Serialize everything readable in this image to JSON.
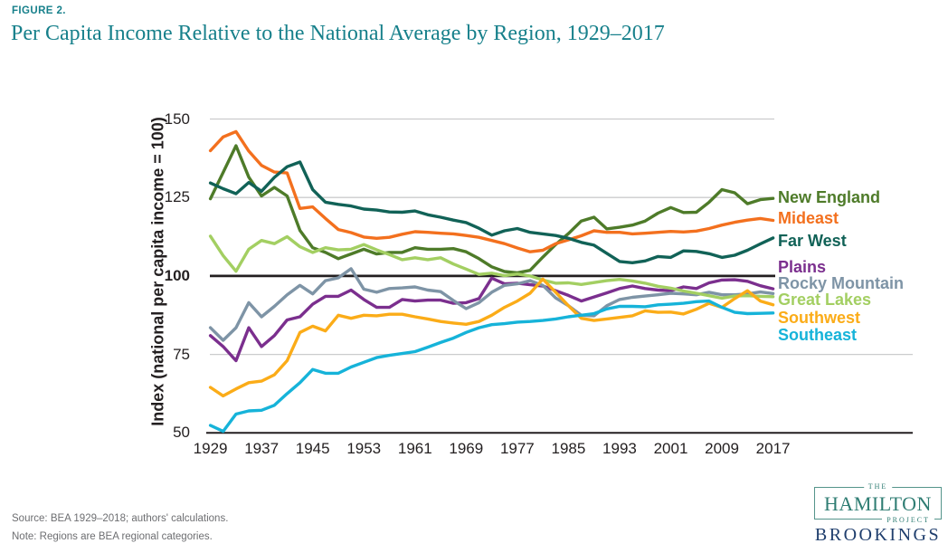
{
  "figure_label": "FIGURE 2.",
  "title": "Per Capita Income Relative to the National Average by Region, 1929–2017",
  "source_line": "Source: BEA 1929–2018; authors' calculations.",
  "note_line": "Note: Regions are BEA regional categories.",
  "logo": {
    "the": "THE",
    "hamilton": "HAMILTON",
    "project": "PROJECT",
    "brookings": "BROOKINGS"
  },
  "colors": {
    "title_teal": "#17808b",
    "axis_black": "#231f20",
    "gridline_gray": "#cbcccd",
    "source_gray": "#6d6e71",
    "logo_teal": "#2f7d73",
    "brookings_navy": "#1f3e6d"
  },
  "chart_data": {
    "type": "line",
    "title": "Per Capita Income Relative to the National Average by Region, 1929–2017",
    "xlabel": "",
    "ylabel": "Index (national per capita income = 100)",
    "xlim": [
      1929,
      2017
    ],
    "ylim": [
      50,
      155
    ],
    "yticks": [
      150,
      125,
      100,
      75,
      50
    ],
    "xticks": [
      1929,
      1937,
      1945,
      1953,
      1961,
      1969,
      1977,
      1985,
      1993,
      2001,
      2009,
      2017
    ],
    "reference_line": 100,
    "grid": "horizontal",
    "legend_position": "right",
    "x": [
      1929,
      1931,
      1933,
      1935,
      1937,
      1939,
      1941,
      1943,
      1945,
      1947,
      1949,
      1951,
      1953,
      1955,
      1957,
      1959,
      1961,
      1963,
      1965,
      1967,
      1969,
      1971,
      1973,
      1975,
      1977,
      1979,
      1981,
      1983,
      1985,
      1987,
      1989,
      1991,
      1993,
      1995,
      1997,
      1999,
      2001,
      2003,
      2005,
      2007,
      2009,
      2011,
      2013,
      2015,
      2017
    ],
    "series": [
      {
        "name": "New England",
        "color": "#4e7b29",
        "values": [
          124.6,
          133,
          141.5,
          131.5,
          125.5,
          128.2,
          125.5,
          114.5,
          109,
          107.5,
          105.5,
          107,
          108.5,
          107,
          107.5,
          107.5,
          109,
          108.5,
          108.5,
          108.7,
          107.7,
          105.5,
          102.9,
          101.4,
          101,
          101.8,
          106,
          110,
          113.5,
          117.5,
          118.7,
          115,
          115.5,
          116.2,
          117.5,
          120,
          121.8,
          120.2,
          120.3,
          123.5,
          127.5,
          126.5,
          123,
          124.3,
          124.7
        ]
      },
      {
        "name": "Mideast",
        "color": "#f3701e",
        "values": [
          139.9,
          144.3,
          146,
          139.8,
          135.2,
          133.1,
          132.8,
          121.5,
          122,
          118.3,
          114.8,
          113.8,
          112.4,
          112,
          112.3,
          113.3,
          114.1,
          113.9,
          113.6,
          113.4,
          112.9,
          112.3,
          111.3,
          110.3,
          108.9,
          107.7,
          108.2,
          110.3,
          111.5,
          112.8,
          114.4,
          113.9,
          113.9,
          113.4,
          113.6,
          113.9,
          114.2,
          114,
          114.3,
          115.1,
          116.2,
          117.1,
          117.8,
          118.3,
          117.7
        ]
      },
      {
        "name": "Far West",
        "color": "#116257",
        "values": [
          129.6,
          127.8,
          126.2,
          129.8,
          127,
          131.4,
          134.8,
          136.3,
          127.5,
          123.5,
          122.8,
          122.3,
          121.3,
          121,
          120.4,
          120.3,
          120.7,
          119.5,
          118.7,
          117.8,
          117,
          115.2,
          113,
          114.4,
          115.1,
          113.9,
          113.4,
          112.9,
          112,
          110.7,
          109.8,
          107.2,
          104.6,
          104.2,
          104.8,
          106.2,
          105.9,
          108,
          107.8,
          107.1,
          105.9,
          106.6,
          108.2,
          110.2,
          112.1
        ]
      },
      {
        "name": "Plains",
        "color": "#7b2f8e",
        "values": [
          81,
          77.5,
          73,
          83.5,
          77.5,
          81,
          86,
          87,
          91,
          93.5,
          93.5,
          95.5,
          92.5,
          90,
          90,
          92.5,
          92,
          92.3,
          92.3,
          91.3,
          91.5,
          92.8,
          99.3,
          97.5,
          97.7,
          97.2,
          96.8,
          95.3,
          93.8,
          92,
          93.3,
          94.6,
          96,
          96.8,
          96,
          95.5,
          95.3,
          96.5,
          96,
          97.8,
          98.7,
          98.8,
          98.3,
          96.9,
          95.9
        ]
      },
      {
        "name": "Rocky Mountain",
        "color": "#7e94a6",
        "values": [
          83.5,
          79.5,
          83.5,
          91.5,
          87,
          90.3,
          94,
          97,
          94.3,
          98.5,
          99.4,
          102.3,
          95.8,
          94.8,
          96,
          96.2,
          96.5,
          95.5,
          95,
          92.2,
          89.6,
          91.5,
          94.8,
          97,
          97.5,
          98.5,
          97,
          93,
          90.5,
          87.5,
          87.3,
          90.5,
          92.5,
          93.2,
          93.6,
          94,
          94.5,
          94.3,
          94,
          94.8,
          94,
          94,
          94.3,
          94.9,
          94.4
        ]
      },
      {
        "name": "Great Lakes",
        "color": "#a3cf62",
        "values": [
          112.7,
          106.5,
          101.5,
          108.5,
          111.3,
          110.3,
          112.5,
          109.3,
          107.5,
          109,
          108.3,
          108.5,
          110,
          108.3,
          106.8,
          105.2,
          105.8,
          105.2,
          105.8,
          103.8,
          102.2,
          100.5,
          100.9,
          100.1,
          100.6,
          100,
          98.7,
          97.7,
          97.8,
          97.3,
          97.9,
          98.5,
          98.9,
          98.4,
          97.7,
          96.7,
          96.1,
          95.2,
          94.5,
          93.7,
          92.9,
          93.6,
          93.7,
          93.5,
          93.4
        ]
      },
      {
        "name": "Southwest",
        "color": "#fbac18",
        "values": [
          64.5,
          61.8,
          64,
          66,
          66.5,
          68.5,
          73,
          82,
          84,
          82.5,
          87.5,
          86.5,
          87.5,
          87.3,
          87.8,
          87.8,
          87,
          86.3,
          85.5,
          85,
          84.6,
          85.5,
          87.5,
          90,
          92,
          94.5,
          99,
          94.8,
          90.5,
          86.5,
          85.8,
          86.3,
          86.8,
          87.3,
          88.9,
          88.4,
          88.5,
          87.9,
          89.4,
          91.3,
          90,
          92.8,
          95.3,
          92,
          90.8
        ]
      },
      {
        "name": "Southeast",
        "color": "#16b3d9",
        "values": [
          52.4,
          50.5,
          56,
          57,
          57.2,
          58.8,
          62.5,
          66,
          70.2,
          69,
          69,
          71,
          72.5,
          74,
          74.7,
          75.3,
          75.9,
          77.3,
          78.8,
          80.2,
          82,
          83.5,
          84.5,
          84.8,
          85.3,
          85.5,
          85.8,
          86.3,
          87,
          87.5,
          88,
          89.5,
          90.3,
          90.3,
          90.2,
          90.8,
          91,
          91.3,
          91.8,
          92,
          90,
          88.4,
          88,
          88.1,
          88.2
        ]
      }
    ]
  }
}
